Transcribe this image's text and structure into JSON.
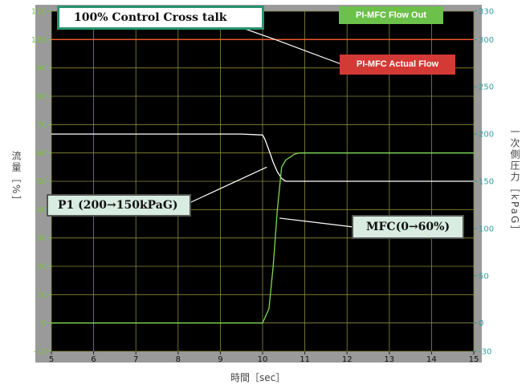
{
  "chart_data": {
    "type": "line",
    "title": "100% Control  Cross talk",
    "xlabel": "時間［sec］",
    "ylabel_left": "流量［%］",
    "ylabel_right": "一次側圧力［kPaG］",
    "xlim": [
      5,
      15
    ],
    "ylim_left": [
      -10,
      110
    ],
    "ylim_right": [
      -30,
      330
    ],
    "x_ticks": [
      5,
      6,
      7,
      8,
      9,
      10,
      11,
      12,
      13,
      14,
      15
    ],
    "y_left_ticks": [
      -10,
      0,
      10,
      20,
      30,
      40,
      50,
      60,
      70,
      80,
      90,
      100,
      110
    ],
    "y_right_ticks": [
      -30,
      0,
      50,
      100,
      150,
      200,
      250,
      300,
      330
    ],
    "grid": true,
    "series": [
      {
        "name": "PI-MFC Flow Out",
        "axis": "left",
        "x": [
          5,
          10,
          10.1,
          10.15,
          10.2,
          10.3,
          10.4,
          10.5,
          10.6,
          10.8,
          11,
          12,
          13,
          14,
          15
        ],
        "y": [
          100,
          100,
          100,
          100,
          100,
          100,
          100,
          100,
          100,
          100,
          100,
          100,
          100,
          100,
          100
        ]
      },
      {
        "name": "PI-MFC Actual Flow",
        "axis": "left",
        "x": [
          5,
          10,
          10.15,
          10.3,
          10.4,
          10.5,
          10.6,
          10.7,
          10.8,
          11,
          12,
          13,
          14,
          15
        ],
        "y": [
          100,
          100,
          100,
          100,
          100,
          100,
          100,
          100,
          100,
          100,
          100,
          100,
          100,
          100
        ]
      },
      {
        "name": "P1 (200→150kPaG)",
        "axis": "right",
        "x": [
          5,
          9.5,
          10,
          10.05,
          10.15,
          10.25,
          10.35,
          10.45,
          10.55,
          10.7,
          11,
          12,
          13,
          14,
          15
        ],
        "y": [
          200,
          200,
          199,
          195,
          183,
          170,
          160,
          153,
          150,
          150,
          150,
          150,
          150,
          150,
          150
        ]
      },
      {
        "name": "MFC(0→60%)",
        "axis": "left",
        "x": [
          5,
          10,
          10.15,
          10.25,
          10.35,
          10.45,
          10.55,
          10.65,
          10.75,
          10.85,
          11,
          12,
          13,
          14,
          15
        ],
        "y": [
          0,
          0,
          5,
          20,
          40,
          55,
          57.5,
          58.5,
          59.5,
          60,
          60,
          60,
          60,
          60,
          60
        ]
      }
    ],
    "annotations": [
      "100% Control  Cross talk",
      "PI-MFC Flow Out",
      "PI-MFC Actual Flow",
      "P1 (200→150kPaG)",
      "MFC(0→60%)"
    ]
  },
  "colors": {
    "plot_bg": "#000000",
    "frame_bg": "#9a9a9a",
    "grid": "#8c8c3c",
    "left_axis": "#7bc24a",
    "right_axis": "#2f9e9e",
    "series_flow_out": "#ffa33a",
    "series_actual": "#ff4b2b",
    "series_p1": "#ffffff",
    "series_mfc": "#7ed957",
    "tag_green": "#6cc14a",
    "tag_red": "#d43a35",
    "title_border": "#2a9470",
    "callout_fill": "#d8ece1"
  }
}
